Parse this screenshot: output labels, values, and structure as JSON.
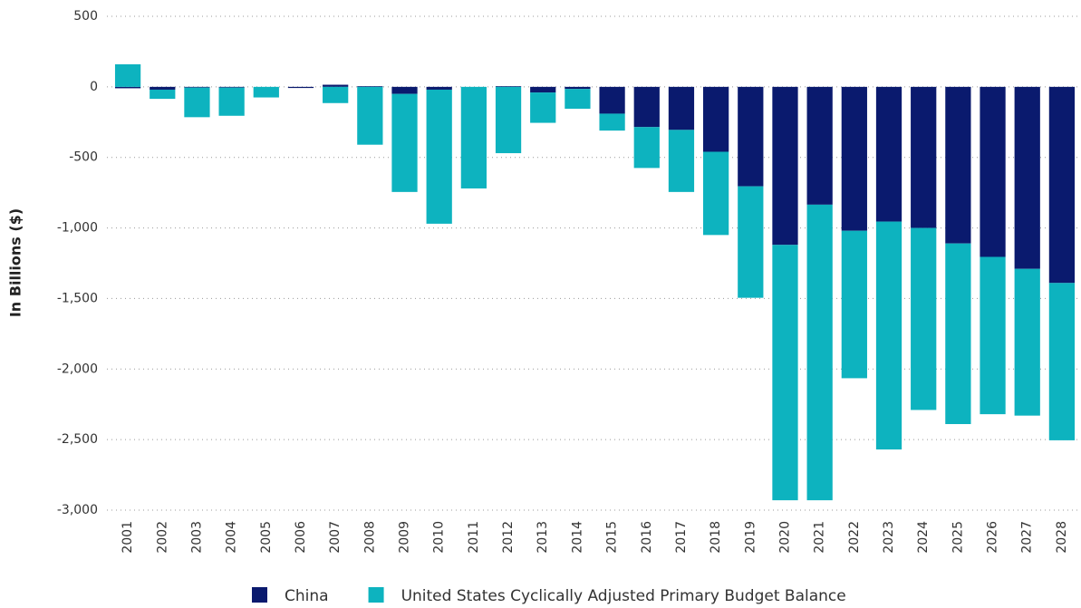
{
  "chart_data": {
    "type": "stacked_bar",
    "y_label": "In Billions ($)",
    "categories": [
      "2001",
      "2002",
      "2003",
      "2004",
      "2005",
      "2006",
      "2007",
      "2008",
      "2009",
      "2010",
      "2011",
      "2012",
      "2013",
      "2014",
      "2015",
      "2016",
      "2017",
      "2018",
      "2019",
      "2020",
      "2021",
      "2022",
      "2023",
      "2024",
      "2025",
      "2026",
      "2027",
      "2028"
    ],
    "series": [
      {
        "name": "China",
        "color": "#0a1a6e",
        "values": [
          -10,
          -20,
          -5,
          -5,
          0,
          -8,
          15,
          5,
          -50,
          -20,
          0,
          5,
          -40,
          -15,
          -190,
          -285,
          -305,
          -460,
          -705,
          -1120,
          -835,
          -1020,
          -955,
          -1000,
          -1110,
          -1205,
          -1290,
          -1390
        ]
      },
      {
        "name": "United States Cyclically Adjusted Primary Budget Balance",
        "color": "#0db3bf",
        "values": [
          160,
          -65,
          -210,
          -200,
          -75,
          0,
          -115,
          -410,
          -695,
          -950,
          -720,
          -470,
          -215,
          -140,
          -120,
          -290,
          -440,
          -590,
          -790,
          -1810,
          -2095,
          -1045,
          -1615,
          -1290,
          -1280,
          -1115,
          -1040,
          -1115
        ]
      }
    ],
    "ylim": [
      -3000,
      500
    ],
    "yticks": [
      500,
      0,
      -500,
      {
        "value": -1000,
        "label": "-1,000"
      },
      {
        "value": -1500,
        "label": "-1,500"
      },
      {
        "value": -2000,
        "label": "-2,000"
      },
      {
        "value": -2500,
        "label": "-2,500"
      },
      {
        "value": -3000,
        "label": "-3,000"
      }
    ],
    "grid": true,
    "legend": "bottom"
  }
}
